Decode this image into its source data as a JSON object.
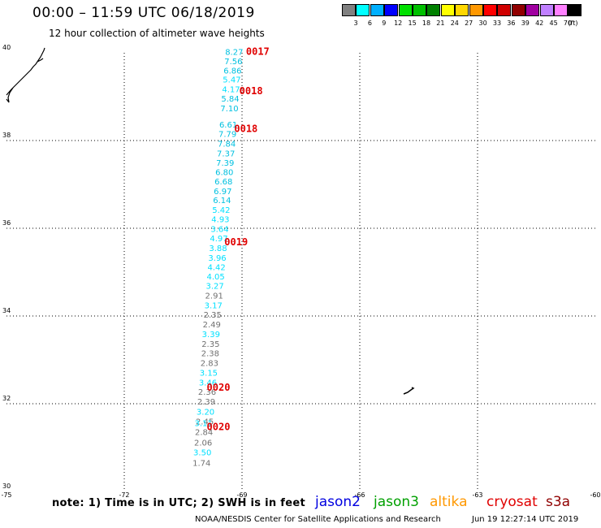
{
  "header": {
    "title": "00:00 – 11:59 UTC 06/18/2019",
    "subtitle": "12 hour collection of altimeter wave heights"
  },
  "colorbar": {
    "unit": "(ft)",
    "bins": [
      {
        "label": "3",
        "color": "#808080"
      },
      {
        "label": "6",
        "color": "#00ffff"
      },
      {
        "label": "9",
        "color": "#00b0ff"
      },
      {
        "label": "12",
        "color": "#0000ff"
      },
      {
        "label": "15",
        "color": "#00e000"
      },
      {
        "label": "18",
        "color": "#00c000"
      },
      {
        "label": "21",
        "color": "#008000"
      },
      {
        "label": "24",
        "color": "#ffff00"
      },
      {
        "label": "27",
        "color": "#ffd700"
      },
      {
        "label": "30",
        "color": "#ff9800"
      },
      {
        "label": "33",
        "color": "#ff0000"
      },
      {
        "label": "36",
        "color": "#d00000"
      },
      {
        "label": "39",
        "color": "#900000"
      },
      {
        "label": "42",
        "color": "#a000a0"
      },
      {
        "label": "45",
        "color": "#c080ff"
      },
      {
        "label": "70",
        "color": "#ff80ff"
      },
      {
        "label": "",
        "color": "#000000"
      }
    ]
  },
  "map": {
    "lon_range": [
      -75,
      -60
    ],
    "lat_range": [
      30,
      40
    ],
    "lon_ticks": [
      "-75",
      "-72",
      "-69",
      "-66",
      "-63",
      "-60"
    ],
    "lat_ticks": [
      "30",
      "32",
      "34",
      "36",
      "38",
      "40"
    ],
    "grid_lons": [
      -72,
      -69,
      -66,
      -63
    ],
    "grid_lats": [
      32,
      34,
      36,
      38
    ]
  },
  "observations": [
    {
      "lat": 39.95,
      "lon": -69.2,
      "value": "8.27",
      "color": "#00c0e0"
    },
    {
      "lat": 39.74,
      "lon": -69.22,
      "value": "7.56",
      "color": "#00c0e0"
    },
    {
      "lat": 39.53,
      "lon": -69.24,
      "value": "6.86",
      "color": "#00c0e0"
    },
    {
      "lat": 39.32,
      "lon": -69.26,
      "value": "5.47",
      "color": "#00e0ff"
    },
    {
      "lat": 39.1,
      "lon": -69.28,
      "value": "4.17",
      "color": "#00e0ff"
    },
    {
      "lat": 38.89,
      "lon": -69.3,
      "value": "5.84",
      "color": "#00c0e0"
    },
    {
      "lat": 38.67,
      "lon": -69.32,
      "value": "7.10",
      "color": "#00c0e0"
    },
    {
      "lat": 38.3,
      "lon": -69.35,
      "value": "6.61",
      "color": "#00c0e0"
    },
    {
      "lat": 38.08,
      "lon": -69.37,
      "value": "7.79",
      "color": "#00c0e0"
    },
    {
      "lat": 37.86,
      "lon": -69.39,
      "value": "7.84",
      "color": "#00c0e0"
    },
    {
      "lat": 37.64,
      "lon": -69.41,
      "value": "7.37",
      "color": "#00c0e0"
    },
    {
      "lat": 37.43,
      "lon": -69.43,
      "value": "7.39",
      "color": "#00c0e0"
    },
    {
      "lat": 37.21,
      "lon": -69.45,
      "value": "6.80",
      "color": "#00c0e0"
    },
    {
      "lat": 37.0,
      "lon": -69.47,
      "value": "6.68",
      "color": "#00c0e0"
    },
    {
      "lat": 36.78,
      "lon": -69.49,
      "value": "6.97",
      "color": "#00c0e0"
    },
    {
      "lat": 36.57,
      "lon": -69.51,
      "value": "6.14",
      "color": "#00c0e0"
    },
    {
      "lat": 36.35,
      "lon": -69.53,
      "value": "5.42",
      "color": "#00e0ff"
    },
    {
      "lat": 36.14,
      "lon": -69.55,
      "value": "4.93",
      "color": "#00e0ff"
    },
    {
      "lat": 35.92,
      "lon": -69.57,
      "value": "3.64",
      "color": "#00e0ff"
    },
    {
      "lat": 35.7,
      "lon": -69.59,
      "value": "4.97",
      "color": "#00e0ff"
    },
    {
      "lat": 35.48,
      "lon": -69.61,
      "value": "3.88",
      "color": "#00e0ff"
    },
    {
      "lat": 35.26,
      "lon": -69.63,
      "value": "3.96",
      "color": "#00e0ff"
    },
    {
      "lat": 35.05,
      "lon": -69.65,
      "value": "4.42",
      "color": "#00e0ff"
    },
    {
      "lat": 34.83,
      "lon": -69.67,
      "value": "4.05",
      "color": "#00e0ff"
    },
    {
      "lat": 34.62,
      "lon": -69.69,
      "value": "3.27",
      "color": "#00e0ff"
    },
    {
      "lat": 34.4,
      "lon": -69.71,
      "value": "2.91",
      "color": "#707070"
    },
    {
      "lat": 34.18,
      "lon": -69.73,
      "value": "3.17",
      "color": "#00e0ff"
    },
    {
      "lat": 33.96,
      "lon": -69.75,
      "value": "2.35",
      "color": "#707070"
    },
    {
      "lat": 33.74,
      "lon": -69.77,
      "value": "2.49",
      "color": "#707070"
    },
    {
      "lat": 33.52,
      "lon": -69.79,
      "value": "3.39",
      "color": "#00e0ff"
    },
    {
      "lat": 33.3,
      "lon": -69.8,
      "value": "2.35",
      "color": "#707070"
    },
    {
      "lat": 33.08,
      "lon": -69.81,
      "value": "2.38",
      "color": "#707070"
    },
    {
      "lat": 32.86,
      "lon": -69.83,
      "value": "2.83",
      "color": "#707070"
    },
    {
      "lat": 32.64,
      "lon": -69.85,
      "value": "3.15",
      "color": "#00e0ff"
    },
    {
      "lat": 32.42,
      "lon": -69.87,
      "value": "3.46",
      "color": "#00e0ff"
    },
    {
      "lat": 32.2,
      "lon": -69.89,
      "value": "2.36",
      "color": "#707070"
    },
    {
      "lat": 31.98,
      "lon": -69.91,
      "value": "2.39",
      "color": "#707070"
    },
    {
      "lat": 31.75,
      "lon": -69.93,
      "value": "3.20",
      "color": "#00e0ff"
    },
    {
      "lat": 31.53,
      "lon": -69.95,
      "value": "2.45",
      "color": "#707070"
    },
    {
      "lat": 31.49,
      "lon": -69.98,
      "value": "3.11",
      "color": "#00e0ff"
    },
    {
      "lat": 31.29,
      "lon": -69.97,
      "value": "2.84",
      "color": "#707070"
    },
    {
      "lat": 31.05,
      "lon": -69.99,
      "value": "2.06",
      "color": "#707070"
    },
    {
      "lat": 30.82,
      "lon": -70.01,
      "value": "3.50",
      "color": "#00e0ff"
    },
    {
      "lat": 30.58,
      "lon": -70.03,
      "value": "1.74",
      "color": "#707070"
    }
  ],
  "hour_labels": [
    {
      "lat": 39.95,
      "lon": -68.6,
      "text": "0017"
    },
    {
      "lat": 39.06,
      "lon": -68.77,
      "text": "0018"
    },
    {
      "lat": 38.19,
      "lon": -68.9,
      "text": "0018"
    },
    {
      "lat": 35.61,
      "lon": -69.15,
      "text": "0019"
    },
    {
      "lat": 32.3,
      "lon": -69.6,
      "text": "0020"
    },
    {
      "lat": 31.4,
      "lon": -69.6,
      "text": "0020"
    }
  ],
  "hour_label_color": "#e00000",
  "footer": {
    "note": "note: 1) Time is in UTC; 2) SWH is in feet",
    "satellites": [
      {
        "name": "jason2",
        "color": "#0000e0"
      },
      {
        "name": "jason3",
        "color": "#00a000"
      },
      {
        "name": "altika",
        "color": "#ff9800"
      },
      {
        "name": "cryosat",
        "color": "#e00000"
      },
      {
        "name": "s3a",
        "color": "#900000"
      }
    ],
    "credit": "NOAA/NESDIS Center for Satellite Applications and Research",
    "timestamp": "Jun 19 12:27:14 UTC 2019"
  }
}
